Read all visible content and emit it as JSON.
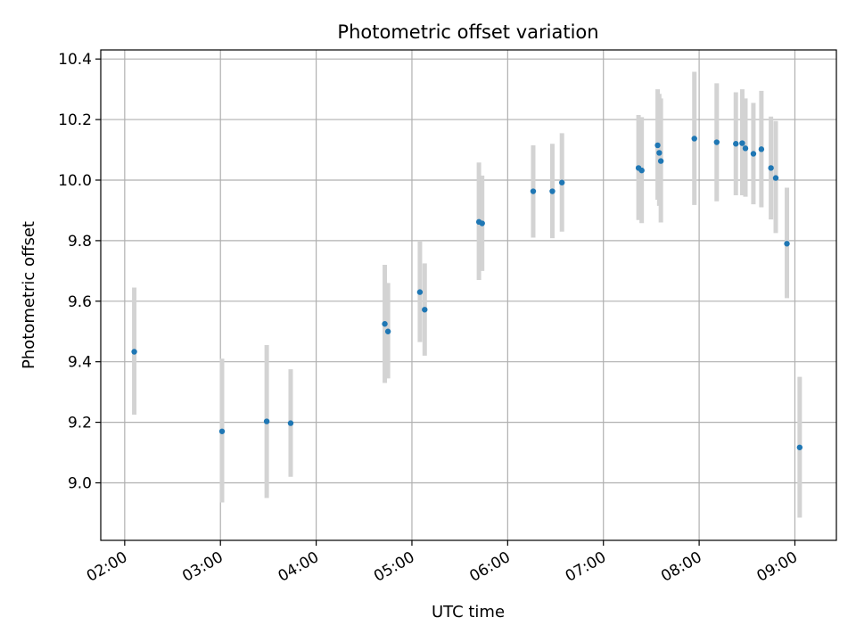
{
  "chart_data": {
    "type": "scatter",
    "title": "Photometric offset variation",
    "xlabel": "UTC time",
    "ylabel": "Photometric offset",
    "xlim": [
      "01:45",
      "09:26"
    ],
    "ylim": [
      8.81,
      10.43
    ],
    "grid": true,
    "x_ticks": [
      "02:00",
      "03:00",
      "04:00",
      "05:00",
      "06:00",
      "07:00",
      "08:00",
      "09:00"
    ],
    "y_ticks": [
      "9.0",
      "9.2",
      "9.4",
      "9.6",
      "9.8",
      "10.0",
      "10.2",
      "10.4"
    ],
    "colors": {
      "points": "#1f77b4",
      "error_bars": "#d3d3d3",
      "grid": "#b0b0b0"
    },
    "points": [
      {
        "x": "02:06",
        "y": 9.433,
        "lo": 9.225,
        "hi": 9.645
      },
      {
        "x": "03:01",
        "y": 9.17,
        "lo": 8.935,
        "hi": 9.41
      },
      {
        "x": "03:29",
        "y": 9.203,
        "lo": 8.95,
        "hi": 9.455
      },
      {
        "x": "03:44",
        "y": 9.197,
        "lo": 9.02,
        "hi": 9.375
      },
      {
        "x": "04:43",
        "y": 9.525,
        "lo": 9.33,
        "hi": 9.72
      },
      {
        "x": "04:45",
        "y": 9.5,
        "lo": 9.345,
        "hi": 9.66
      },
      {
        "x": "05:05",
        "y": 9.63,
        "lo": 9.465,
        "hi": 9.8
      },
      {
        "x": "05:08",
        "y": 9.572,
        "lo": 9.42,
        "hi": 9.725
      },
      {
        "x": "05:42",
        "y": 9.862,
        "lo": 9.67,
        "hi": 10.058
      },
      {
        "x": "05:44",
        "y": 9.857,
        "lo": 9.7,
        "hi": 10.015
      },
      {
        "x": "06:16",
        "y": 9.963,
        "lo": 9.81,
        "hi": 10.115
      },
      {
        "x": "06:28",
        "y": 9.963,
        "lo": 9.808,
        "hi": 10.12
      },
      {
        "x": "06:34",
        "y": 9.992,
        "lo": 9.83,
        "hi": 10.155
      },
      {
        "x": "07:22",
        "y": 10.04,
        "lo": 9.868,
        "hi": 10.215
      },
      {
        "x": "07:24",
        "y": 10.032,
        "lo": 9.858,
        "hi": 10.208
      },
      {
        "x": "07:34",
        "y": 10.115,
        "lo": 9.935,
        "hi": 10.3
      },
      {
        "x": "07:35",
        "y": 10.09,
        "lo": 9.915,
        "hi": 10.285
      },
      {
        "x": "07:36",
        "y": 10.063,
        "lo": 9.86,
        "hi": 10.27
      },
      {
        "x": "07:57",
        "y": 10.137,
        "lo": 9.918,
        "hi": 10.358
      },
      {
        "x": "08:11",
        "y": 10.125,
        "lo": 9.93,
        "hi": 10.32
      },
      {
        "x": "08:23",
        "y": 10.12,
        "lo": 9.95,
        "hi": 10.29
      },
      {
        "x": "08:27",
        "y": 10.122,
        "lo": 9.95,
        "hi": 10.3
      },
      {
        "x": "08:29",
        "y": 10.105,
        "lo": 9.945,
        "hi": 10.27
      },
      {
        "x": "08:34",
        "y": 10.087,
        "lo": 9.92,
        "hi": 10.255
      },
      {
        "x": "08:39",
        "y": 10.102,
        "lo": 9.91,
        "hi": 10.295
      },
      {
        "x": "08:45",
        "y": 10.04,
        "lo": 9.87,
        "hi": 10.21
      },
      {
        "x": "08:48",
        "y": 10.007,
        "lo": 9.825,
        "hi": 10.195
      },
      {
        "x": "08:55",
        "y": 9.79,
        "lo": 9.61,
        "hi": 9.975
      },
      {
        "x": "09:03",
        "y": 9.117,
        "lo": 8.885,
        "hi": 9.35
      }
    ]
  }
}
